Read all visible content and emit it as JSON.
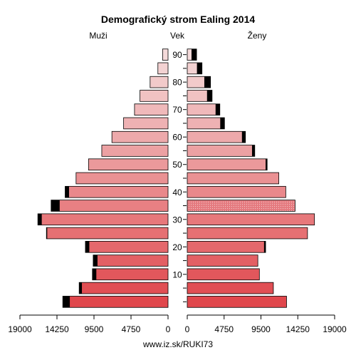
{
  "chart_data": {
    "type": "bar",
    "title": "Demografický strom Ealing 2014",
    "left_label": "Muži",
    "center_label": "Vek",
    "right_label": "Ženy",
    "footer": "www.iz.sk/RUKI73",
    "x_ticks": [
      19000,
      14250,
      9500,
      4750,
      0
    ],
    "x_tick_labels": [
      "19000",
      "14250",
      "9500",
      "4750",
      "0"
    ],
    "age_ticks": [
      10,
      20,
      30,
      40,
      50,
      60,
      70,
      80,
      90
    ],
    "age_tick_labels": [
      "10",
      "20",
      "30",
      "40",
      "50",
      "60",
      "70",
      "80",
      "90"
    ],
    "age_groups": [
      "0-4",
      "5-9",
      "10-14",
      "15-19",
      "20-24",
      "25-29",
      "30-34",
      "35-39",
      "40-44",
      "45-49",
      "50-54",
      "55-59",
      "60-64",
      "65-69",
      "70-74",
      "75-79",
      "80-84",
      "85-89",
      "90+"
    ],
    "xlim": [
      0,
      19000
    ],
    "series": [
      {
        "name": "Muži",
        "total": [
          13500,
          11400,
          9700,
          9600,
          10600,
          15600,
          16700,
          15000,
          13200,
          11800,
          10200,
          8500,
          7200,
          5700,
          4300,
          3600,
          2300,
          1300,
          700
        ],
        "black_part": [
          900,
          350,
          500,
          550,
          500,
          100,
          500,
          1100,
          500,
          0,
          0,
          0,
          0,
          0,
          0,
          0,
          0,
          0,
          0
        ]
      },
      {
        "name": "Ženy",
        "total": [
          12800,
          11100,
          9300,
          9100,
          10100,
          15500,
          16400,
          13900,
          12700,
          11800,
          10300,
          8700,
          7500,
          4800,
          4200,
          3200,
          3000,
          1900,
          1200
        ],
        "black_part": [
          0,
          0,
          0,
          0,
          200,
          0,
          0,
          0,
          0,
          0,
          200,
          350,
          450,
          550,
          550,
          650,
          800,
          650,
          650
        ]
      }
    ],
    "colors": {
      "bar_young": "#e0474c",
      "bar_old": "#f4dada",
      "excess": "#000000",
      "outline": "#000000",
      "text": "#000000"
    }
  }
}
